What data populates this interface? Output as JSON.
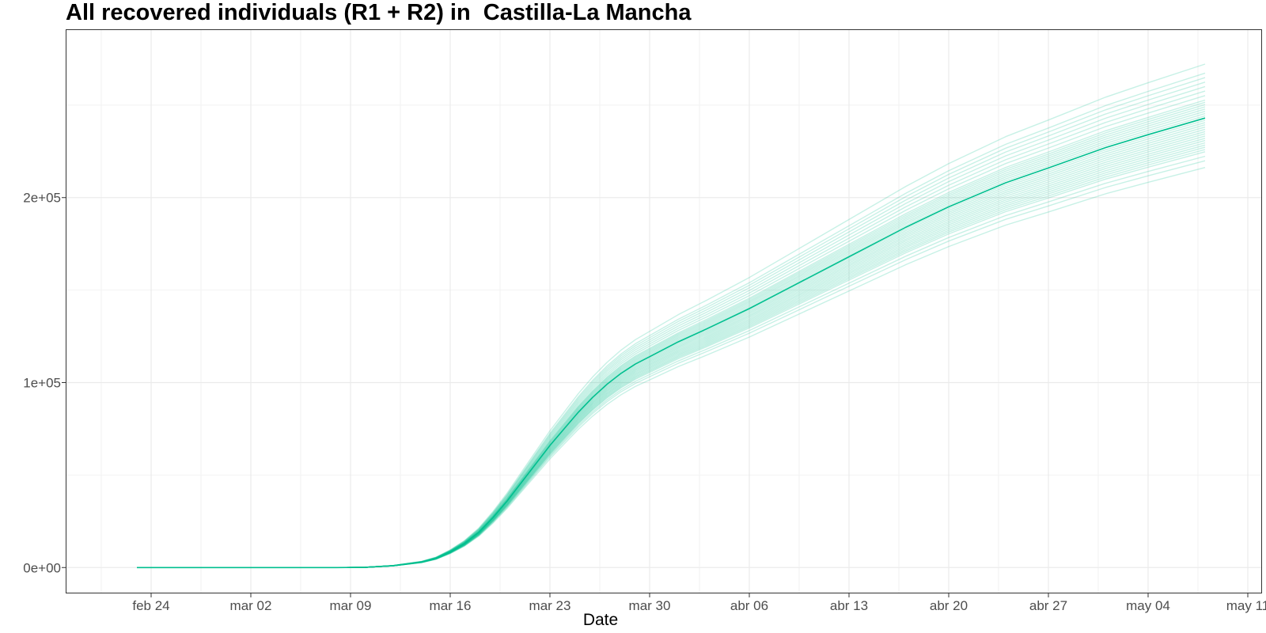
{
  "chart_data": {
    "type": "line",
    "title": "All recovered individuals (R1 + R2) in  Castilla-La Mancha",
    "xlabel": "Date",
    "ylabel": "",
    "x_axis": {
      "type": "date",
      "range": [
        "2020-02-18",
        "2020-05-12"
      ],
      "ticks": [
        {
          "date": "2020-02-24",
          "label": "feb 24"
        },
        {
          "date": "2020-03-02",
          "label": "mar 02"
        },
        {
          "date": "2020-03-09",
          "label": "mar 09"
        },
        {
          "date": "2020-03-16",
          "label": "mar 16"
        },
        {
          "date": "2020-03-23",
          "label": "mar 23"
        },
        {
          "date": "2020-03-30",
          "label": "mar 30"
        },
        {
          "date": "2020-04-06",
          "label": "abr 06"
        },
        {
          "date": "2020-04-13",
          "label": "abr 13"
        },
        {
          "date": "2020-04-20",
          "label": "abr 20"
        },
        {
          "date": "2020-04-27",
          "label": "abr 27"
        },
        {
          "date": "2020-05-04",
          "label": "may 04"
        },
        {
          "date": "2020-05-11",
          "label": "may 11"
        }
      ]
    },
    "y_axis": {
      "range": [
        -14000,
        291000
      ],
      "ticks": [
        {
          "value": 0,
          "label": "0e+00"
        },
        {
          "value": 100000,
          "label": "1e+05"
        },
        {
          "value": 200000,
          "label": "2e+05"
        }
      ]
    },
    "grid": true,
    "legend": "none",
    "colors": {
      "central": "#00BF8F",
      "ensemble": "#00BF8F"
    },
    "central_series": {
      "x": [
        "2020-02-23",
        "2020-03-01",
        "2020-03-08",
        "2020-03-10",
        "2020-03-12",
        "2020-03-14",
        "2020-03-15",
        "2020-03-16",
        "2020-03-17",
        "2020-03-18",
        "2020-03-19",
        "2020-03-20",
        "2020-03-21",
        "2020-03-22",
        "2020-03-23",
        "2020-03-24",
        "2020-03-25",
        "2020-03-26",
        "2020-03-27",
        "2020-03-28",
        "2020-03-29",
        "2020-03-30",
        "2020-04-01",
        "2020-04-03",
        "2020-04-06",
        "2020-04-09",
        "2020-04-13",
        "2020-04-17",
        "2020-04-20",
        "2020-04-24",
        "2020-04-27",
        "2020-05-01",
        "2020-05-04",
        "2020-05-08"
      ],
      "y": [
        0,
        0,
        0,
        100,
        1000,
        3000,
        5000,
        8500,
        13000,
        19000,
        27000,
        36000,
        46000,
        56000,
        66000,
        75000,
        84000,
        92000,
        99000,
        105000,
        110000,
        114000,
        122000,
        129000,
        140000,
        152000,
        168000,
        184000,
        195000,
        208000,
        216000,
        227000,
        234000,
        243000
      ]
    },
    "ensemble_multipliers": [
      0.89,
      0.905,
      0.915,
      0.925,
      0.93,
      0.935,
      0.94,
      0.945,
      0.95,
      0.955,
      0.96,
      0.965,
      0.97,
      0.975,
      0.98,
      0.985,
      0.99,
      0.995,
      1.0,
      1.005,
      1.01,
      1.015,
      1.02,
      1.025,
      1.03,
      1.035,
      1.04,
      1.05,
      1.06,
      1.07,
      1.08,
      1.09,
      1.1,
      1.12
    ]
  }
}
